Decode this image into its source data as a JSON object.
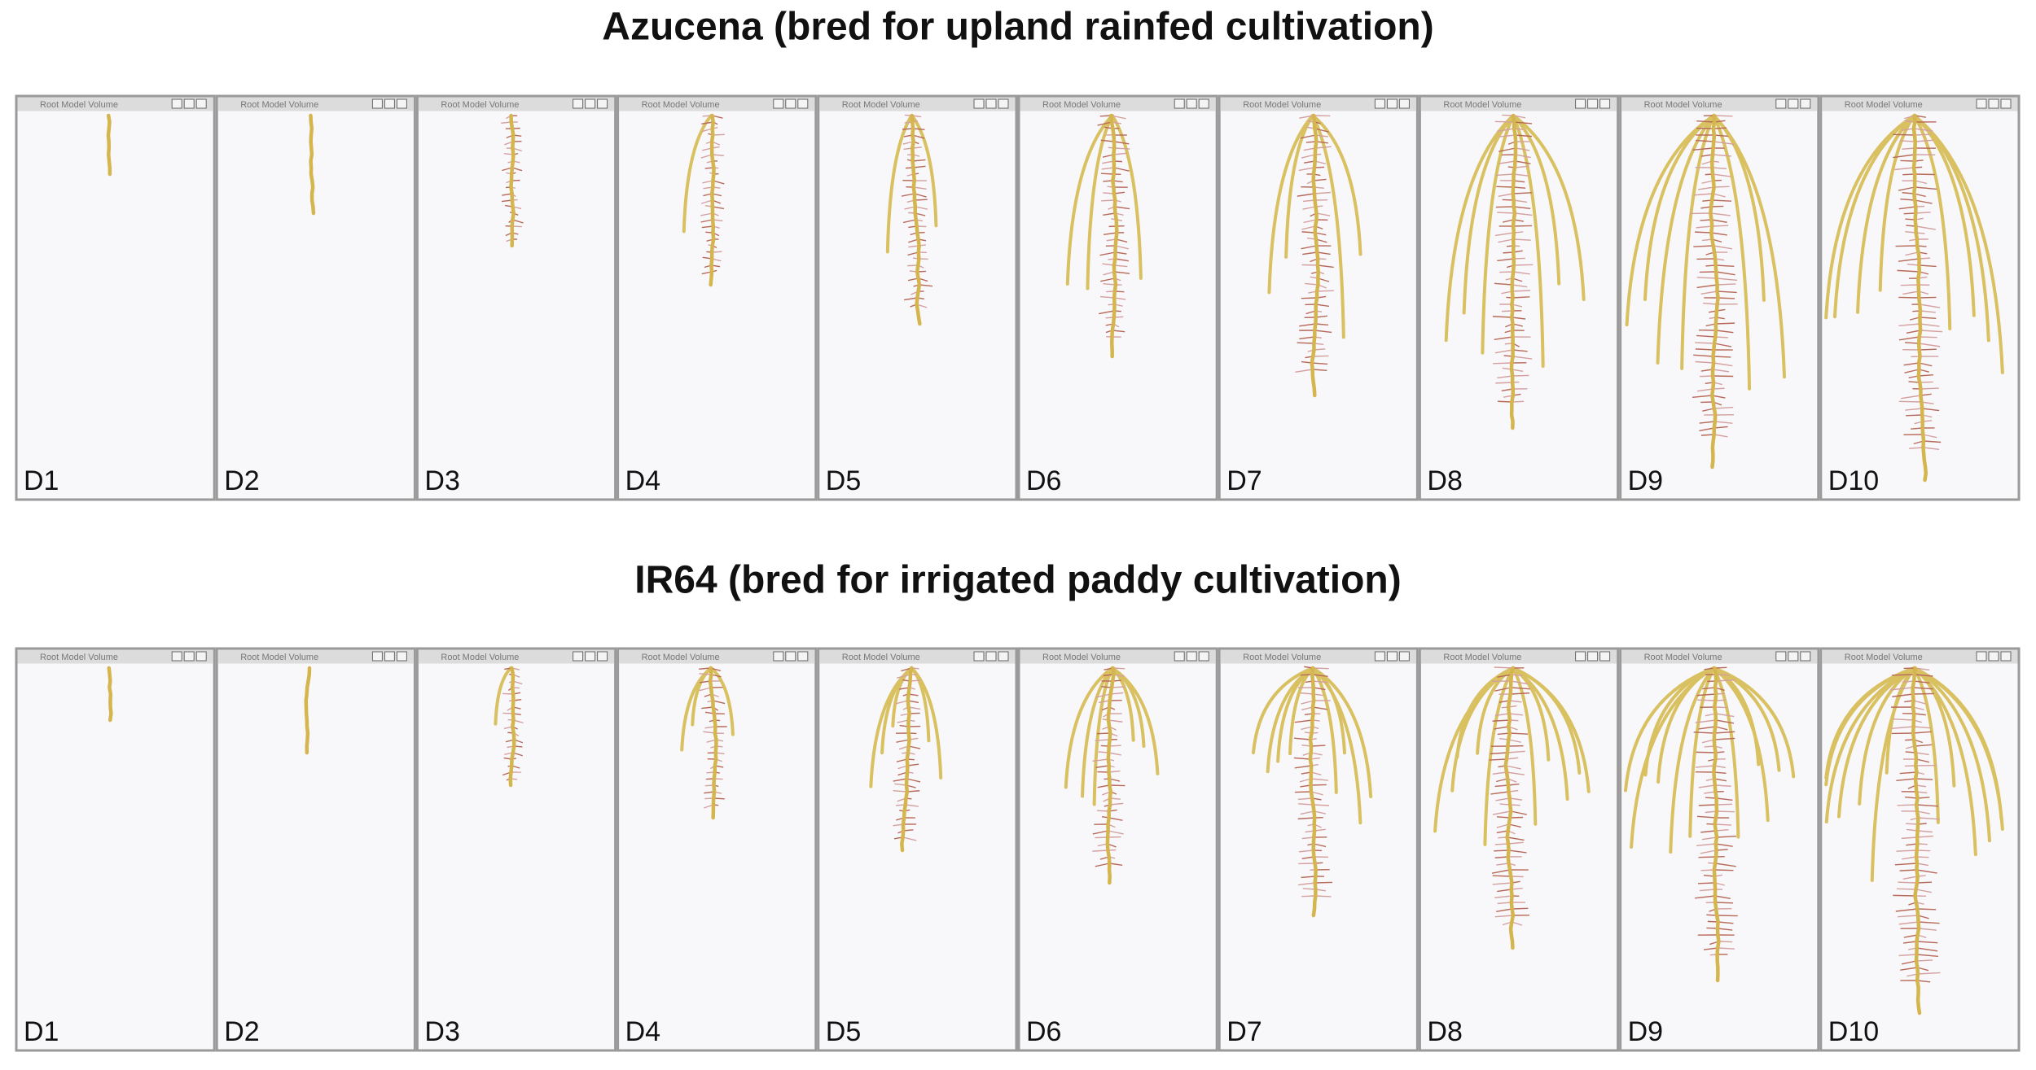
{
  "window_title": "Root Model Volume",
  "rows": [
    {
      "title": "Azucena (bred for upland rainfed cultivation)",
      "panels": [
        "D1",
        "D2",
        "D3",
        "D4",
        "D5",
        "D6",
        "D7",
        "D8",
        "D9",
        "D10"
      ]
    },
    {
      "title": "IR64 (bred for irrigated paddy cultivation)",
      "panels": [
        "D1",
        "D2",
        "D3",
        "D4",
        "D5",
        "D6",
        "D7",
        "D8",
        "D9",
        "D10"
      ]
    }
  ]
}
